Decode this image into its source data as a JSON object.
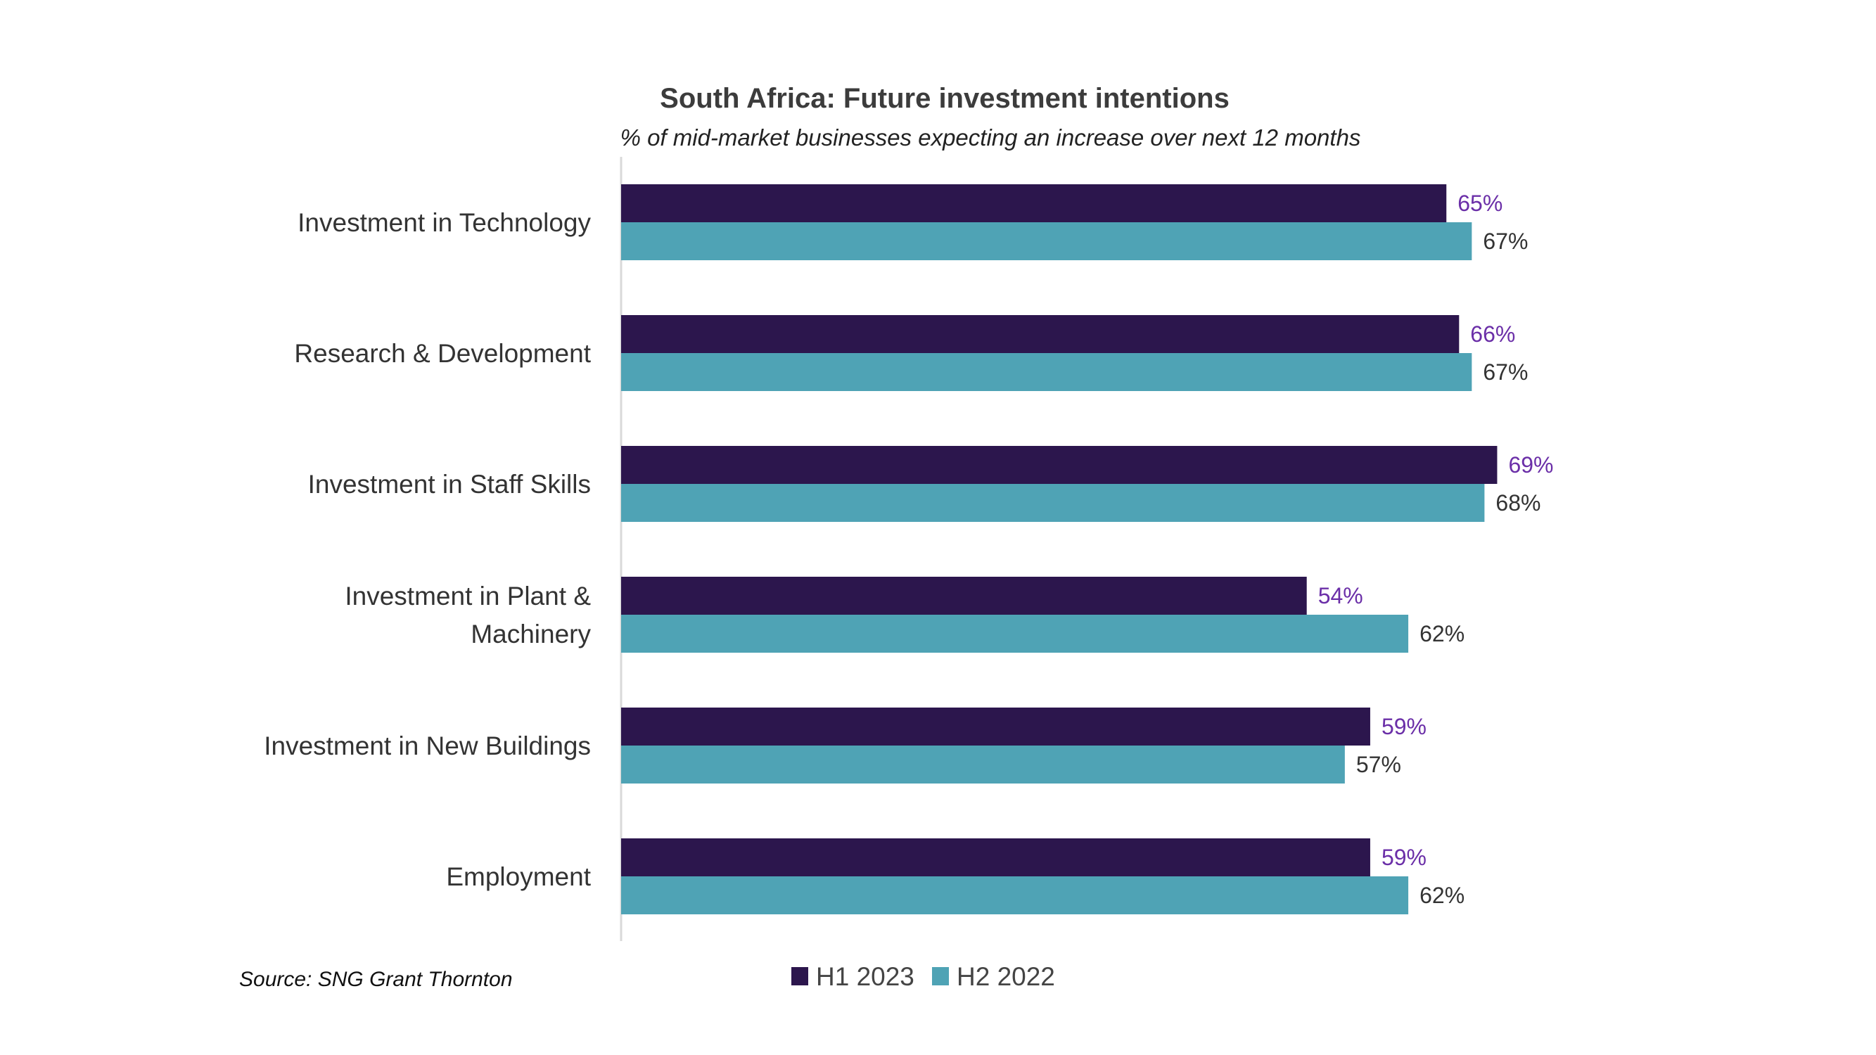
{
  "chart_data": {
    "type": "bar",
    "orientation": "horizontal",
    "title": "South Africa: Future investment intentions",
    "subtitle": "% of mid-market businesses expecting an increase over next 12 months",
    "categories": [
      [
        "Investment in Technology"
      ],
      [
        "Research & Development"
      ],
      [
        "Investment in Staff Skills"
      ],
      [
        "Investment in Plant &",
        "Machinery"
      ],
      [
        "Investment in New Buildings"
      ],
      [
        "Employment"
      ]
    ],
    "series": [
      {
        "name": "H1 2023",
        "color": "#2c164d",
        "label_color": "#6b2fa8",
        "values": [
          65,
          66,
          69,
          54,
          59,
          59
        ]
      },
      {
        "name": "H2 2022",
        "color": "#4fa3b5",
        "label_color": "#333333",
        "values": [
          67,
          67,
          68,
          62,
          57,
          62
        ]
      }
    ],
    "value_suffix": "%",
    "xlim": [
      0,
      100
    ],
    "grid": false,
    "legend": "bottom-center",
    "source": "Source: SNG Grant Thornton"
  }
}
